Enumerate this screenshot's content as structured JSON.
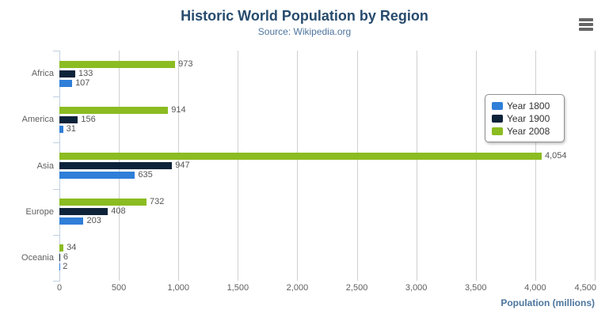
{
  "chart_data": {
    "type": "bar",
    "orientation": "horizontal",
    "title": "Historic World Population by Region",
    "subtitle": "Source: Wikipedia.org",
    "xlabel": "Population (millions)",
    "categories": [
      "Africa",
      "America",
      "Asia",
      "Europe",
      "Oceania"
    ],
    "series": [
      {
        "name": "Year 1800",
        "color": "#2f7ed8",
        "values": [
          107,
          31,
          635,
          203,
          2
        ]
      },
      {
        "name": "Year 1900",
        "color": "#0d233a",
        "values": [
          133,
          156,
          947,
          408,
          6
        ]
      },
      {
        "name": "Year 2008",
        "color": "#8bbc21",
        "values": [
          973,
          914,
          4054,
          732,
          34
        ]
      }
    ],
    "series_display_order_top_to_bottom": [
      "Year 2008",
      "Year 1900",
      "Year 1800"
    ],
    "data_labels": {
      "Africa": {
        "Year 2008": "973",
        "Year 1900": "133",
        "Year 1800": "107"
      },
      "America": {
        "Year 2008": "914",
        "Year 1900": "156",
        "Year 1800": "31"
      },
      "Asia": {
        "Year 2008": "4,054",
        "Year 1900": "947",
        "Year 1800": "635"
      },
      "Europe": {
        "Year 2008": "732",
        "Year 1900": "408",
        "Year 1800": "203"
      },
      "Oceania": {
        "Year 2008": "34",
        "Year 1900": "6",
        "Year 1800": "2"
      }
    },
    "xlim": [
      0,
      4500
    ],
    "xticks": [
      0,
      500,
      1000,
      1500,
      2000,
      2500,
      3000,
      3500,
      4000,
      4500
    ],
    "xtick_labels": [
      "0",
      "500",
      "1,000",
      "1,500",
      "2,000",
      "2,500",
      "3,000",
      "3,500",
      "4,000",
      "4,500"
    ],
    "grid": true,
    "legend_position": "right-overlay"
  },
  "legend": {
    "items": [
      {
        "label": "Year 1800",
        "color": "#2f7ed8"
      },
      {
        "label": "Year 1900",
        "color": "#0d233a"
      },
      {
        "label": "Year 2008",
        "color": "#8bbc21"
      }
    ]
  },
  "toolbar": {
    "context_menu_icon": "hamburger-icon"
  },
  "colors": {
    "title": "#274b6d",
    "subtitle": "#4d759e",
    "axis_title": "#4d759e",
    "axis_line": "#c0d0e0",
    "gridline": "#d0d0d0",
    "tick_label": "#606060",
    "data_label": "#555555"
  }
}
